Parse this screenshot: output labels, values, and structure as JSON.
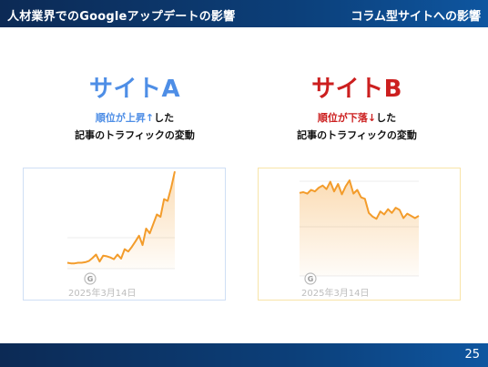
{
  "header": {
    "title": "人材業界でのGoogleアップデートの影響",
    "subtitle": "コラム型サイトへの影響"
  },
  "footer": {
    "page_number": "25"
  },
  "site_a": {
    "title": "サイトA",
    "caption_highlight": "順位が上昇↑",
    "caption_rest1": "した",
    "caption_line2": "記事のトラフィックの変動",
    "chart_date": "2025年3月14日",
    "marker_label": "G"
  },
  "site_b": {
    "title": "サイトB",
    "caption_highlight": "順位が下落↓",
    "caption_rest1": "した",
    "caption_line2": "記事のトラフィックの変動",
    "chart_date": "2025年3月14日",
    "marker_label": "G"
  },
  "colors": {
    "site_a_accent": "#4e8ee6",
    "site_b_accent": "#cc1f1f",
    "line": "#f39c2b",
    "header_bg": "#0c3f79"
  },
  "chart_data": [
    {
      "type": "area",
      "series": [
        {
          "values": [
            10,
            9,
            9,
            10,
            10,
            11,
            13,
            18,
            24,
            12,
            22,
            21,
            19,
            16,
            24,
            17,
            33,
            29,
            37,
            46,
            56,
            40,
            68,
            60,
            76,
            92,
            88,
            118,
            115,
            138,
            165
          ]
        }
      ],
      "ylim": [
        0,
        170
      ]
    },
    {
      "type": "area",
      "series": [
        {
          "values": [
            112,
            113,
            111,
            116,
            114,
            119,
            122,
            117,
            127,
            114,
            124,
            110,
            121,
            129,
            111,
            116,
            106,
            104,
            85,
            80,
            77,
            87,
            83,
            90,
            85,
            92,
            89,
            78,
            84,
            81,
            78,
            81
          ]
        }
      ],
      "ylim": [
        0,
        140
      ]
    }
  ]
}
